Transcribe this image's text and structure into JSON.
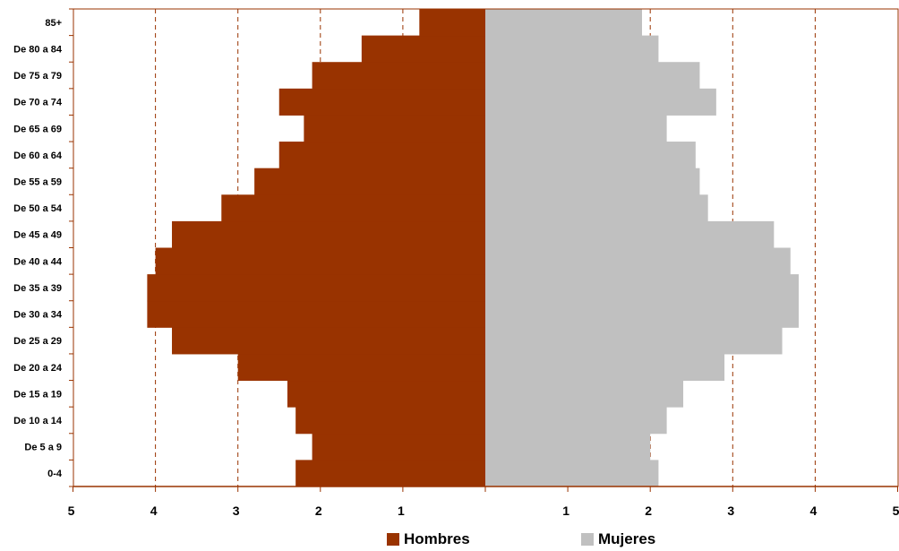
{
  "chart_data": {
    "type": "bar",
    "orientation": "horizontal",
    "subtype": "population-pyramid",
    "categories": [
      "0-4",
      "De 5 a 9",
      "De 10 a 14",
      "De 15 a 19",
      "De 20 a 24",
      "De 25 a 29",
      "De 30 a 34",
      "De 35 a 39",
      "De 40 a 44",
      "De 45 a 49",
      "De 50 a 54",
      "De 55 a 59",
      "De 60 a 64",
      "De 65 a 69",
      "De 70 a 74",
      "De 75 a 79",
      "De 80 a 84",
      "85+"
    ],
    "series": [
      {
        "name": "Hombres",
        "color": "#993300",
        "values": [
          2.3,
          2.1,
          2.3,
          2.4,
          3.0,
          3.8,
          4.1,
          4.1,
          4.0,
          3.8,
          3.2,
          2.8,
          2.5,
          2.2,
          2.5,
          2.1,
          1.5,
          0.8
        ]
      },
      {
        "name": "Mujeres",
        "color": "#c0c0c0",
        "values": [
          2.1,
          2.0,
          2.2,
          2.4,
          2.9,
          3.6,
          3.8,
          3.8,
          3.7,
          3.5,
          2.7,
          2.6,
          2.55,
          2.2,
          2.8,
          2.6,
          2.1,
          1.9
        ]
      }
    ],
    "x_tick_labels": [
      "5",
      "4",
      "3",
      "2",
      "1",
      "",
      "1",
      "2",
      "3",
      "4",
      "5"
    ],
    "xlim": [
      -5,
      5
    ],
    "grid": true,
    "legend_position": "bottom"
  }
}
